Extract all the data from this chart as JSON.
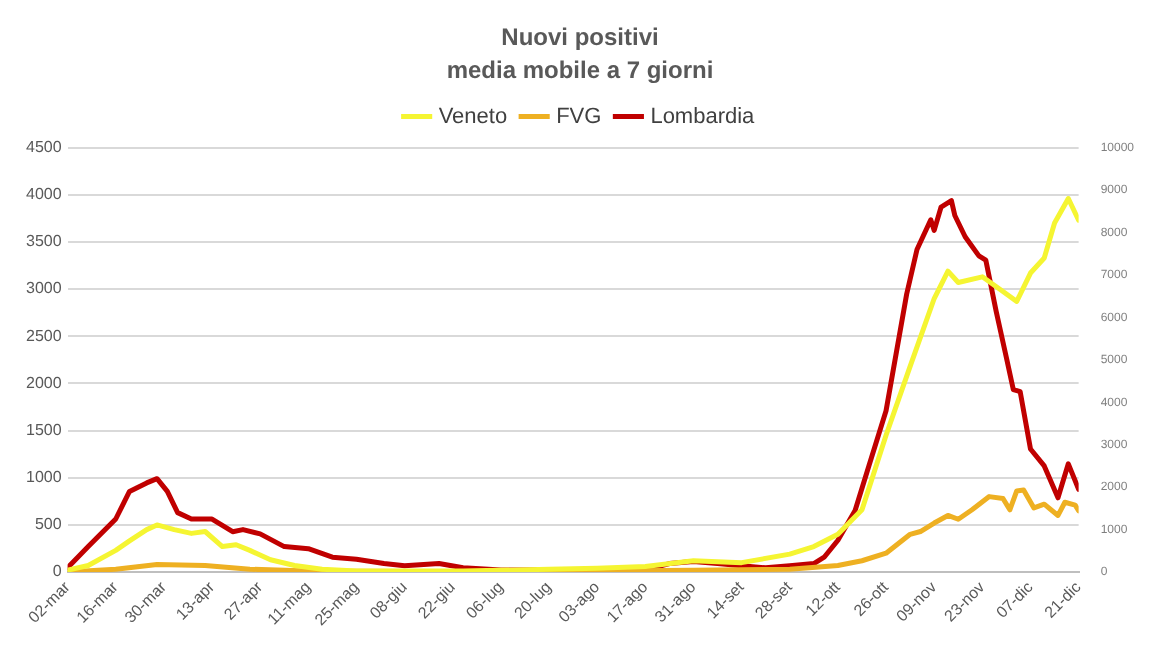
{
  "chart_data": {
    "type": "line",
    "title": "Nuovi positivi",
    "subtitle": "media mobile a 7 giorni",
    "xlim": [
      "--03-02",
      "--12-21"
    ],
    "xticks": [
      {
        "value": "--03-02",
        "label": "02-mar"
      },
      {
        "value": "--03-16",
        "label": "16-mar"
      },
      {
        "value": "--03-30",
        "label": "30-mar"
      },
      {
        "value": "--04-13",
        "label": "13-apr"
      },
      {
        "value": "--04-27",
        "label": "27-apr"
      },
      {
        "value": "--05-11",
        "label": "11-mag"
      },
      {
        "value": "--05-25",
        "label": "25-mag"
      },
      {
        "value": "--06-08",
        "label": "08-giu"
      },
      {
        "value": "--06-22",
        "label": "22-giu"
      },
      {
        "value": "--07-06",
        "label": "06-lug"
      },
      {
        "value": "--07-20",
        "label": "20-lug"
      },
      {
        "value": "--08-03",
        "label": "03-ago"
      },
      {
        "value": "--08-17",
        "label": "17-ago"
      },
      {
        "value": "--08-31",
        "label": "31-ago"
      },
      {
        "value": "--09-14",
        "label": "14-set"
      },
      {
        "value": "--09-28",
        "label": "28-set"
      },
      {
        "value": "--10-12",
        "label": "12-ott"
      },
      {
        "value": "--10-26",
        "label": "26-ott"
      },
      {
        "value": "--11-09",
        "label": "09-nov"
      },
      {
        "value": "--11-23",
        "label": "23-nov"
      },
      {
        "value": "--12-07",
        "label": "07-dic"
      },
      {
        "value": "--12-21",
        "label": "21-dic"
      }
    ],
    "ylim": [
      0,
      4500
    ],
    "yticks": [
      0,
      500,
      1000,
      1500,
      2000,
      2500,
      3000,
      3500,
      4000,
      4500
    ],
    "y2lim": [
      0,
      10000
    ],
    "y2ticks": [
      0,
      1000,
      2000,
      3000,
      4000,
      5000,
      6000,
      7000,
      8000,
      9000,
      10000
    ],
    "grid": "y",
    "legend": "top",
    "marker": "none",
    "line_style": "solid",
    "series": [
      {
        "name": "Veneto",
        "color": "#f5f532",
        "x": [
          "--03-02",
          "--03-08",
          "--03-16",
          "--03-20",
          "--03-25",
          "--03-28",
          "--04-02",
          "--04-07",
          "--04-11",
          "--04-16",
          "--04-20",
          "--04-24",
          "--04-30",
          "--05-07",
          "--05-15",
          "--05-25",
          "--06-25",
          "--07-20",
          "--08-03",
          "--08-17",
          "--08-31",
          "--09-14",
          "--09-28",
          "--10-05",
          "--10-12",
          "--10-19",
          "--10-26",
          "--11-02",
          "--11-09",
          "--11-13",
          "--11-16",
          "--11-23",
          "--11-28",
          "--12-03",
          "--12-07",
          "--12-11",
          "--12-14",
          "--12-18",
          "--12-21"
        ],
        "values": [
          20,
          70,
          230,
          330,
          450,
          500,
          450,
          410,
          430,
          270,
          290,
          230,
          130,
          70,
          30,
          10,
          10,
          30,
          40,
          60,
          120,
          100,
          190,
          270,
          400,
          660,
          1450,
          2180,
          2900,
          3190,
          3070,
          3130,
          3000,
          2870,
          3170,
          3330,
          3700,
          3960,
          3730
        ]
      },
      {
        "name": "FVG",
        "color": "#eeb022",
        "x": [
          "--03-02",
          "--03-16",
          "--03-28",
          "--04-11",
          "--04-24",
          "--05-11",
          "--07-20",
          "--08-03",
          "--08-31",
          "--09-28",
          "--10-12",
          "--10-19",
          "--10-26",
          "--11-02",
          "--11-05",
          "--11-09",
          "--11-13",
          "--11-16",
          "--11-20",
          "--11-25",
          "--11-29",
          "--12-01",
          "--12-03",
          "--12-05",
          "--12-08",
          "--12-11",
          "--12-15",
          "--12-17",
          "--12-20",
          "--12-21"
        ],
        "values": [
          0,
          30,
          80,
          70,
          30,
          10,
          0,
          10,
          20,
          30,
          70,
          120,
          200,
          400,
          430,
          520,
          600,
          560,
          660,
          800,
          780,
          660,
          860,
          870,
          680,
          720,
          600,
          740,
          710,
          650
        ]
      },
      {
        "name": "Lombardia",
        "color": "#c00000",
        "axis": "y2",
        "x": [
          "--03-02",
          "--03-08",
          "--03-16",
          "--03-20",
          "--03-25",
          "--03-28",
          "--03-31",
          "--04-03",
          "--04-07",
          "--04-13",
          "--04-19",
          "--04-22",
          "--04-27",
          "--05-04",
          "--05-11",
          "--05-18",
          "--05-25",
          "--06-02",
          "--06-08",
          "--06-18",
          "--06-25",
          "--07-06",
          "--07-20",
          "--08-03",
          "--08-17",
          "--08-24",
          "--08-31",
          "--09-07",
          "--09-14",
          "--09-21",
          "--09-28",
          "--10-05",
          "--10-08",
          "--10-12",
          "--10-17",
          "--10-21",
          "--10-26",
          "--11-01",
          "--11-04",
          "--11-08",
          "--11-09",
          "--11-11",
          "--11-14",
          "--11-15",
          "--11-18",
          "--11-22",
          "--11-24",
          "--11-27",
          "--11-30",
          "--12-02",
          "--12-04",
          "--12-07",
          "--12-11",
          "--12-15",
          "--12-18",
          "--12-21"
        ],
        "values": [
          100,
          600,
          1250,
          1900,
          2100,
          2200,
          1900,
          1400,
          1250,
          1250,
          950,
          1000,
          900,
          600,
          550,
          350,
          300,
          200,
          150,
          200,
          100,
          50,
          50,
          50,
          50,
          200,
          250,
          200,
          150,
          100,
          150,
          200,
          350,
          750,
          1450,
          2500,
          3800,
          6550,
          7600,
          8300,
          8050,
          8600,
          8750,
          8400,
          7900,
          7450,
          7350,
          6150,
          5050,
          4300,
          4250,
          2900,
          2500,
          1750,
          2550,
          1950
        ]
      }
    ]
  }
}
